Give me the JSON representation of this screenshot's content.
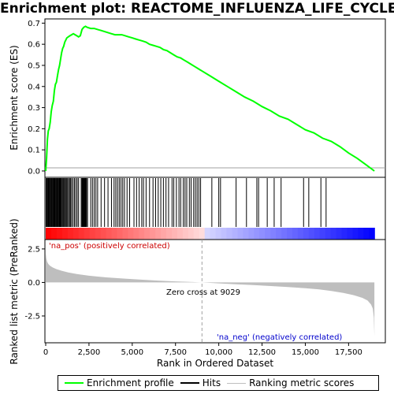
{
  "title": "Enrichment plot: REACTOME_INFLUENZA_LIFE_CYCLE",
  "legend": {
    "items": [
      {
        "label": "Enrichment profile",
        "color": "#00ff00"
      },
      {
        "label": "Hits",
        "color": "#000000"
      },
      {
        "label": "Ranking metric scores",
        "color": "#bebebe"
      }
    ]
  },
  "annotations": {
    "pos_label": "'na_pos' (positively correlated)",
    "neg_label": "'na_neg' (negatively correlated)",
    "zero_cross": "Zero cross at 9029"
  },
  "colors": {
    "profile": "#00ff00",
    "pos_label": "#cc0000",
    "neg_label": "#0000cc",
    "metric_fill": "#bebebe"
  },
  "chart_data": [
    {
      "type": "line",
      "name": "enrichment-profile",
      "ylabel": "Enrichment score (ES)",
      "xlim": [
        0,
        19000
      ],
      "ylim": [
        -0.03,
        0.72
      ],
      "yticks": [
        0.0,
        0.1,
        0.2,
        0.3,
        0.4,
        0.5,
        0.6,
        0.7
      ],
      "grid": false,
      "x": [
        0,
        50,
        100,
        150,
        200,
        260,
        320,
        380,
        440,
        500,
        560,
        620,
        680,
        740,
        800,
        860,
        920,
        980,
        1040,
        1100,
        1160,
        1220,
        1300,
        1400,
        1500,
        1600,
        1700,
        1800,
        1900,
        2000,
        2100,
        2200,
        2300,
        2400,
        2600,
        2800,
        3000,
        3200,
        3400,
        3600,
        3800,
        4000,
        4200,
        4400,
        4600,
        4800,
        5000,
        5200,
        5400,
        5600,
        5800,
        6000,
        6200,
        6400,
        6600,
        6800,
        7000,
        7200,
        7400,
        7600,
        7800,
        8000,
        8200,
        8400,
        8600,
        8800,
        9000,
        9500,
        10000,
        10500,
        11000,
        11500,
        12000,
        12500,
        13000,
        13500,
        14000,
        14500,
        15000,
        15500,
        16000,
        16500,
        17000,
        17500,
        18000,
        18500,
        18990
      ],
      "y": [
        0.0,
        0.06,
        0.15,
        0.19,
        0.2,
        0.23,
        0.28,
        0.31,
        0.33,
        0.38,
        0.41,
        0.42,
        0.45,
        0.48,
        0.5,
        0.53,
        0.56,
        0.58,
        0.59,
        0.61,
        0.62,
        0.63,
        0.635,
        0.64,
        0.645,
        0.65,
        0.645,
        0.64,
        0.635,
        0.64,
        0.67,
        0.68,
        0.685,
        0.68,
        0.675,
        0.675,
        0.67,
        0.665,
        0.66,
        0.655,
        0.65,
        0.645,
        0.645,
        0.645,
        0.64,
        0.635,
        0.63,
        0.625,
        0.62,
        0.615,
        0.61,
        0.6,
        0.595,
        0.59,
        0.585,
        0.575,
        0.57,
        0.56,
        0.55,
        0.54,
        0.535,
        0.525,
        0.515,
        0.505,
        0.495,
        0.485,
        0.475,
        0.45,
        0.425,
        0.4,
        0.375,
        0.35,
        0.33,
        0.305,
        0.285,
        0.26,
        0.245,
        0.22,
        0.195,
        0.18,
        0.155,
        0.14,
        0.115,
        0.085,
        0.06,
        0.03,
        0.0
      ]
    },
    {
      "type": "scatter",
      "name": "hits",
      "xlim": [
        0,
        19000
      ],
      "x": [
        20,
        60,
        100,
        140,
        180,
        220,
        260,
        300,
        340,
        380,
        420,
        460,
        500,
        540,
        580,
        620,
        660,
        700,
        740,
        780,
        820,
        860,
        900,
        950,
        1000,
        1050,
        1100,
        1150,
        1200,
        1260,
        1320,
        1380,
        1440,
        1500,
        1580,
        1660,
        1740,
        1820,
        1900,
        2050,
        2100,
        2130,
        2160,
        2190,
        2220,
        2250,
        2280,
        2320,
        2360,
        2420,
        2600,
        2700,
        2800,
        2900,
        3000,
        3200,
        3400,
        3600,
        3800,
        3950,
        4050,
        4150,
        4250,
        4350,
        4450,
        4550,
        4700,
        4850,
        5100,
        5250,
        5400,
        5550,
        5650,
        5800,
        6000,
        6200,
        6350,
        6500,
        6650,
        6800,
        6950,
        7100,
        7300,
        7400,
        7550,
        7700,
        7800,
        7950,
        8050,
        8150,
        8300,
        8400,
        8550,
        8650,
        8750,
        8850,
        8950,
        9600,
        10000,
        10100,
        11000,
        11600,
        12200,
        12300,
        12800,
        13200,
        13600,
        14900,
        15200,
        15900,
        16200
      ]
    },
    {
      "type": "area",
      "name": "ranking-metric",
      "ylabel": "Ranked list metric (PreRanked)",
      "xlabel": "Rank in Ordered Dataset",
      "xlim": [
        0,
        19000
      ],
      "ylim": [
        -4.5,
        3.2
      ],
      "yticks": [
        -2.5,
        0.0,
        2.5
      ],
      "xticks": [
        0,
        2500,
        5000,
        7500,
        10000,
        12500,
        15000,
        17500
      ],
      "zero_cross": 9029,
      "x": [
        0,
        30,
        80,
        150,
        250,
        400,
        600,
        900,
        1300,
        1800,
        2500,
        3500,
        4500,
        5500,
        6500,
        7500,
        8500,
        9029,
        10000,
        11000,
        12000,
        13000,
        14000,
        15000,
        15800,
        16500,
        17200,
        17800,
        18300,
        18600,
        18800,
        18900,
        18960,
        18990
      ],
      "y": [
        2.2,
        1.8,
        1.55,
        1.38,
        1.25,
        1.12,
        1.0,
        0.88,
        0.75,
        0.63,
        0.5,
        0.38,
        0.29,
        0.21,
        0.14,
        0.08,
        0.03,
        0.0,
        -0.07,
        -0.13,
        -0.2,
        -0.27,
        -0.34,
        -0.43,
        -0.52,
        -0.63,
        -0.78,
        -0.95,
        -1.15,
        -1.35,
        -1.65,
        -1.95,
        -2.6,
        -4.0
      ]
    }
  ]
}
